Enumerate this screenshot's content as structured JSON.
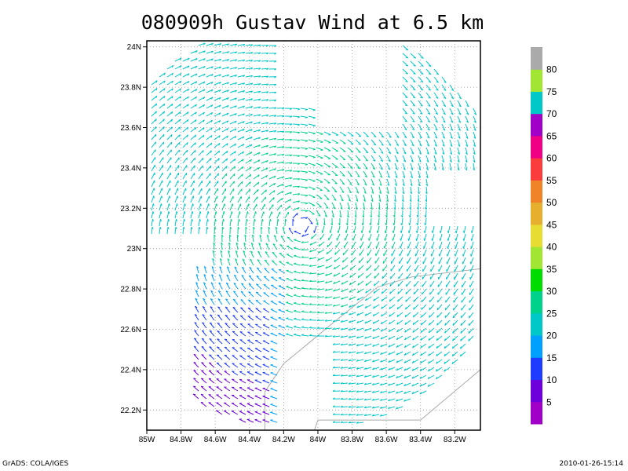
{
  "chart_data": {
    "type": "vector-field",
    "title": "080909h Gustav Wind at 6.5 km",
    "xlabel": "",
    "ylabel": "",
    "xlim": [
      -85.0,
      -83.05
    ],
    "ylim": [
      22.1,
      24.03
    ],
    "x_ticks": [
      -85.0,
      -84.8,
      -84.6,
      -84.4,
      -84.2,
      -84.0,
      -83.8,
      -83.6,
      -83.4,
      -83.2
    ],
    "x_tick_labels": [
      "85W",
      "84.8W",
      "84.6W",
      "84.4W",
      "84.2W",
      "84W",
      "83.8W",
      "83.6W",
      "83.4W",
      "83.2W"
    ],
    "y_ticks": [
      22.2,
      22.4,
      22.6,
      22.8,
      23.0,
      23.2,
      23.4,
      23.6,
      23.8,
      24.0
    ],
    "y_tick_labels": [
      "22.2N",
      "22.4N",
      "22.6N",
      "22.8N",
      "23N",
      "23.2N",
      "23.4N",
      "23.6N",
      "23.8N",
      "24N"
    ],
    "grid": true,
    "vortex_center": {
      "lon": -84.09,
      "lat": 23.12
    },
    "colorbar": {
      "levels": [
        5,
        10,
        15,
        20,
        25,
        30,
        35,
        40,
        45,
        50,
        55,
        60,
        65,
        70,
        75,
        80
      ],
      "colors": [
        "#a000c8",
        "#6e00dc",
        "#1e3cff",
        "#00a0ff",
        "#00c8c8",
        "#00d28c",
        "#00dc00",
        "#a0e632",
        "#e6dc32",
        "#e6af2d",
        "#f08228",
        "#fa3c3c",
        "#f00082",
        "#a000c8",
        "#00c8c8",
        "#a0e632",
        "#aaaaaa"
      ]
    },
    "coastline": [
      [
        [
          -84.31,
          22.1
        ],
        [
          -84.31,
          22.29
        ],
        [
          -84.2,
          22.43
        ],
        [
          -84.07,
          22.52
        ],
        [
          -83.9,
          22.64
        ],
        [
          -83.65,
          22.81
        ],
        [
          -83.45,
          22.86
        ],
        [
          -83.05,
          22.9
        ]
      ],
      [
        [
          -84.02,
          22.1
        ],
        [
          -84.0,
          22.15
        ],
        [
          -83.4,
          22.15
        ],
        [
          -83.05,
          22.4
        ]
      ]
    ]
  },
  "footer": {
    "left": "GrADS: COLA/IGES",
    "right": "2010-01-26-15:14"
  }
}
